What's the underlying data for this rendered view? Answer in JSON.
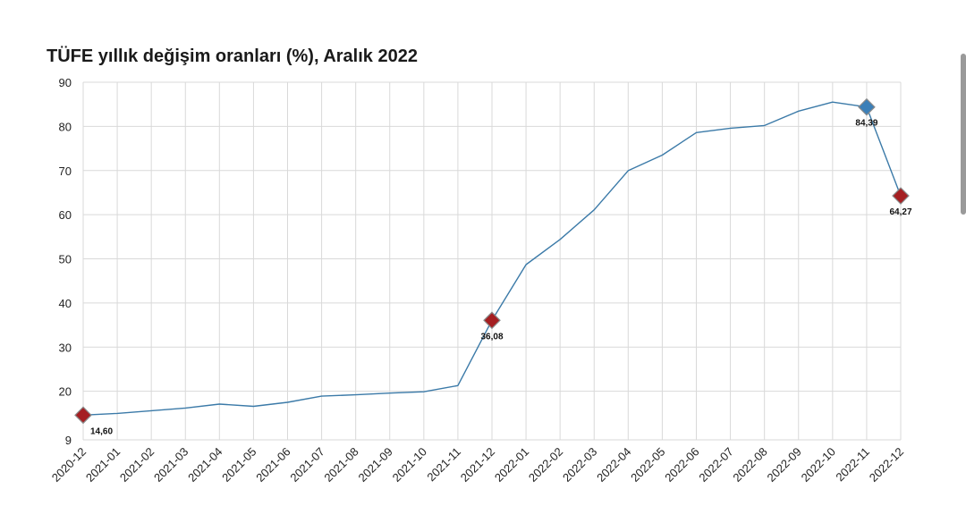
{
  "chart_data": {
    "type": "line",
    "title": "TÜFE yıllık değişim oranları (%), Aralık 2022",
    "xlabel": "",
    "ylabel": "",
    "ylim": [
      9,
      90
    ],
    "yticks": [
      "9",
      "20",
      "30",
      "40",
      "50",
      "60",
      "70",
      "80",
      "90"
    ],
    "ytick_values": [
      9,
      20,
      30,
      40,
      50,
      60,
      70,
      80,
      90
    ],
    "grid": true,
    "categories": [
      "2020-12",
      "2021-01",
      "2021-02",
      "2021-03",
      "2021-04",
      "2021-05",
      "2021-06",
      "2021-07",
      "2021-08",
      "2021-09",
      "2021-10",
      "2021-11",
      "2021-12",
      "2022-01",
      "2022-02",
      "2022-03",
      "2022-04",
      "2022-05",
      "2022-06",
      "2022-07",
      "2022-08",
      "2022-09",
      "2022-10",
      "2022-11",
      "2022-12"
    ],
    "series": [
      {
        "values": [
          14.6,
          15.0,
          15.6,
          16.2,
          17.1,
          16.6,
          17.5,
          18.9,
          19.2,
          19.6,
          19.9,
          21.3,
          36.08,
          48.7,
          54.4,
          61.1,
          69.97,
          73.5,
          78.6,
          79.6,
          80.2,
          83.45,
          85.51,
          84.39,
          64.27
        ],
        "color": "#3b7aa8"
      }
    ],
    "highlights": [
      {
        "index": 0,
        "label": "14,60",
        "color": "#a51f22",
        "position": "below-right"
      },
      {
        "index": 12,
        "label": "36,08",
        "color": "#a51f22",
        "position": "below"
      },
      {
        "index": 23,
        "label": "84,39",
        "color": "#3b7fb8",
        "position": "below"
      },
      {
        "index": 24,
        "label": "64,27",
        "color": "#a51f22",
        "position": "below"
      }
    ]
  },
  "colors": {
    "line": "#3b7aa8",
    "grid": "#d9d9d9",
    "highlight_red": "#a51f22",
    "highlight_blue": "#3b7fb8"
  }
}
